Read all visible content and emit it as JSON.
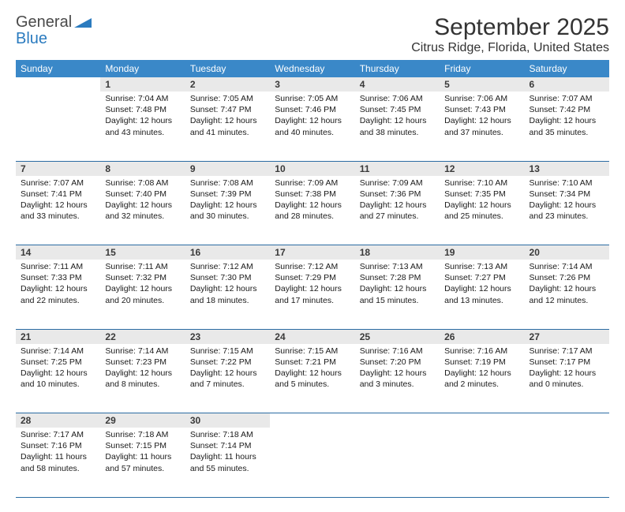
{
  "brand": {
    "word1": "General",
    "word2": "Blue"
  },
  "title": "September 2025",
  "location": "Citrus Ridge, Florida, United States",
  "colors": {
    "header_bg": "#3a88c8",
    "header_text": "#ffffff",
    "daynum_bg": "#e9e9e9",
    "row_border": "#2b6ca3",
    "brand_gray": "#4a4a4a",
    "brand_blue": "#2b7bbf"
  },
  "day_headers": [
    "Sunday",
    "Monday",
    "Tuesday",
    "Wednesday",
    "Thursday",
    "Friday",
    "Saturday"
  ],
  "weeks": [
    {
      "nums": [
        "",
        "1",
        "2",
        "3",
        "4",
        "5",
        "6"
      ],
      "cells": [
        null,
        {
          "sunrise": "7:04 AM",
          "sunset": "7:48 PM",
          "daylight": "12 hours and 43 minutes."
        },
        {
          "sunrise": "7:05 AM",
          "sunset": "7:47 PM",
          "daylight": "12 hours and 41 minutes."
        },
        {
          "sunrise": "7:05 AM",
          "sunset": "7:46 PM",
          "daylight": "12 hours and 40 minutes."
        },
        {
          "sunrise": "7:06 AM",
          "sunset": "7:45 PM",
          "daylight": "12 hours and 38 minutes."
        },
        {
          "sunrise": "7:06 AM",
          "sunset": "7:43 PM",
          "daylight": "12 hours and 37 minutes."
        },
        {
          "sunrise": "7:07 AM",
          "sunset": "7:42 PM",
          "daylight": "12 hours and 35 minutes."
        }
      ]
    },
    {
      "nums": [
        "7",
        "8",
        "9",
        "10",
        "11",
        "12",
        "13"
      ],
      "cells": [
        {
          "sunrise": "7:07 AM",
          "sunset": "7:41 PM",
          "daylight": "12 hours and 33 minutes."
        },
        {
          "sunrise": "7:08 AM",
          "sunset": "7:40 PM",
          "daylight": "12 hours and 32 minutes."
        },
        {
          "sunrise": "7:08 AM",
          "sunset": "7:39 PM",
          "daylight": "12 hours and 30 minutes."
        },
        {
          "sunrise": "7:09 AM",
          "sunset": "7:38 PM",
          "daylight": "12 hours and 28 minutes."
        },
        {
          "sunrise": "7:09 AM",
          "sunset": "7:36 PM",
          "daylight": "12 hours and 27 minutes."
        },
        {
          "sunrise": "7:10 AM",
          "sunset": "7:35 PM",
          "daylight": "12 hours and 25 minutes."
        },
        {
          "sunrise": "7:10 AM",
          "sunset": "7:34 PM",
          "daylight": "12 hours and 23 minutes."
        }
      ]
    },
    {
      "nums": [
        "14",
        "15",
        "16",
        "17",
        "18",
        "19",
        "20"
      ],
      "cells": [
        {
          "sunrise": "7:11 AM",
          "sunset": "7:33 PM",
          "daylight": "12 hours and 22 minutes."
        },
        {
          "sunrise": "7:11 AM",
          "sunset": "7:32 PM",
          "daylight": "12 hours and 20 minutes."
        },
        {
          "sunrise": "7:12 AM",
          "sunset": "7:30 PM",
          "daylight": "12 hours and 18 minutes."
        },
        {
          "sunrise": "7:12 AM",
          "sunset": "7:29 PM",
          "daylight": "12 hours and 17 minutes."
        },
        {
          "sunrise": "7:13 AM",
          "sunset": "7:28 PM",
          "daylight": "12 hours and 15 minutes."
        },
        {
          "sunrise": "7:13 AM",
          "sunset": "7:27 PM",
          "daylight": "12 hours and 13 minutes."
        },
        {
          "sunrise": "7:14 AM",
          "sunset": "7:26 PM",
          "daylight": "12 hours and 12 minutes."
        }
      ]
    },
    {
      "nums": [
        "21",
        "22",
        "23",
        "24",
        "25",
        "26",
        "27"
      ],
      "cells": [
        {
          "sunrise": "7:14 AM",
          "sunset": "7:25 PM",
          "daylight": "12 hours and 10 minutes."
        },
        {
          "sunrise": "7:14 AM",
          "sunset": "7:23 PM",
          "daylight": "12 hours and 8 minutes."
        },
        {
          "sunrise": "7:15 AM",
          "sunset": "7:22 PM",
          "daylight": "12 hours and 7 minutes."
        },
        {
          "sunrise": "7:15 AM",
          "sunset": "7:21 PM",
          "daylight": "12 hours and 5 minutes."
        },
        {
          "sunrise": "7:16 AM",
          "sunset": "7:20 PM",
          "daylight": "12 hours and 3 minutes."
        },
        {
          "sunrise": "7:16 AM",
          "sunset": "7:19 PM",
          "daylight": "12 hours and 2 minutes."
        },
        {
          "sunrise": "7:17 AM",
          "sunset": "7:17 PM",
          "daylight": "12 hours and 0 minutes."
        }
      ]
    },
    {
      "nums": [
        "28",
        "29",
        "30",
        "",
        "",
        "",
        ""
      ],
      "cells": [
        {
          "sunrise": "7:17 AM",
          "sunset": "7:16 PM",
          "daylight": "11 hours and 58 minutes."
        },
        {
          "sunrise": "7:18 AM",
          "sunset": "7:15 PM",
          "daylight": "11 hours and 57 minutes."
        },
        {
          "sunrise": "7:18 AM",
          "sunset": "7:14 PM",
          "daylight": "11 hours and 55 minutes."
        },
        null,
        null,
        null,
        null
      ]
    }
  ],
  "labels": {
    "sunrise": "Sunrise:",
    "sunset": "Sunset:",
    "daylight": "Daylight:"
  }
}
